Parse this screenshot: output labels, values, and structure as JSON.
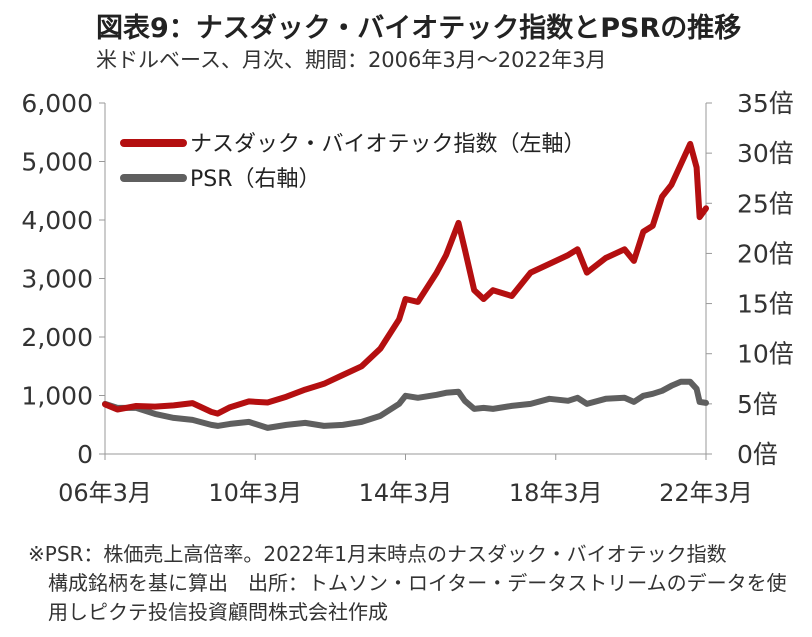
{
  "title": "図表9：ナスダック・バイオテック指数とPSRの推移",
  "subtitle": "米ドルベース、月次、期間：2006年3月～2022年3月",
  "notes": [
    "※PSR：株価売上高倍率。2022年1月末時点のナスダック・バイオテック指数",
    "構成銘柄を基に算出　出所：トムソン・ロイター・データストリームのデータを使",
    "用しピクテ投信投資顧問株式会社作成"
  ],
  "chart_data": {
    "type": "line",
    "left_axis": {
      "min": 0,
      "max": 6000,
      "ticks": [
        "0",
        "1,000",
        "2,000",
        "3,000",
        "4,000",
        "5,000",
        "6,000"
      ]
    },
    "right_axis": {
      "min": 0,
      "max": 35,
      "ticks": [
        "0倍",
        "5倍",
        "10倍",
        "15倍",
        "20倍",
        "25倍",
        "30倍",
        "35倍"
      ]
    },
    "x_ticks": [
      "06年3月",
      "10年3月",
      "14年3月",
      "18年3月",
      "22年3月"
    ],
    "legend_position": "top-left",
    "x": [
      2006.17,
      2006.5,
      2007.0,
      2007.5,
      2008.0,
      2008.5,
      2009.0,
      2009.17,
      2009.5,
      2010.0,
      2010.5,
      2011.0,
      2011.5,
      2012.0,
      2012.5,
      2013.0,
      2013.5,
      2014.0,
      2014.17,
      2014.5,
      2015.0,
      2015.25,
      2015.58,
      2015.75,
      2016.0,
      2016.25,
      2016.5,
      2017.0,
      2017.5,
      2018.0,
      2018.5,
      2018.75,
      2019.0,
      2019.5,
      2020.0,
      2020.25,
      2020.5,
      2020.75,
      2021.0,
      2021.25,
      2021.5,
      2021.75,
      2021.92,
      2022.0,
      2022.17
    ],
    "series": [
      {
        "name": "ナスダック・バイオテック指数（左軸）",
        "axis": "left",
        "color": "#b40f10",
        "values": [
          850,
          760,
          820,
          810,
          830,
          870,
          720,
          690,
          800,
          900,
          880,
          980,
          1100,
          1200,
          1350,
          1500,
          1800,
          2300,
          2650,
          2600,
          3100,
          3400,
          3950,
          3500,
          2800,
          2650,
          2800,
          2700,
          3100,
          3250,
          3400,
          3500,
          3100,
          3350,
          3500,
          3300,
          3800,
          3900,
          4400,
          4600,
          4950,
          5300,
          4900,
          4050,
          4200
        ]
      },
      {
        "name": "PSR（右軸）",
        "axis": "right",
        "color": "#5f5f5f",
        "values": [
          5.0,
          4.6,
          4.6,
          4.0,
          3.6,
          3.4,
          2.9,
          2.8,
          3.0,
          3.2,
          2.6,
          2.9,
          3.1,
          2.8,
          2.9,
          3.2,
          3.8,
          5.0,
          5.8,
          5.6,
          5.9,
          6.1,
          6.2,
          5.3,
          4.5,
          4.6,
          4.5,
          4.8,
          5.0,
          5.5,
          5.3,
          5.6,
          5.0,
          5.5,
          5.6,
          5.2,
          5.8,
          6.0,
          6.3,
          6.8,
          7.2,
          7.2,
          6.5,
          5.2,
          5.1
        ]
      }
    ]
  }
}
